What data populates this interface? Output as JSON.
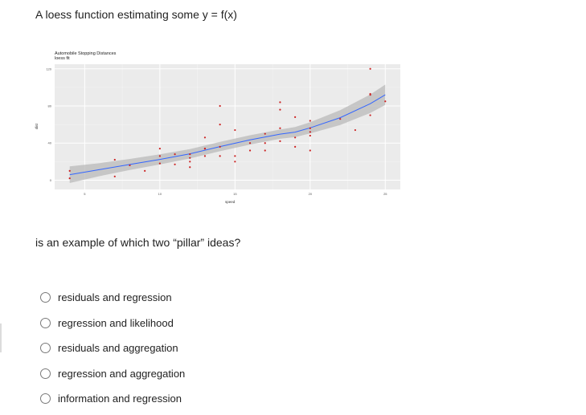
{
  "question": {
    "title": "A loess function estimating some y = f(x)",
    "text": "is an example of which two “pillar” ideas?"
  },
  "options": [
    {
      "label": "residuals and regression",
      "selected": false
    },
    {
      "label": "regression and likelihood",
      "selected": false
    },
    {
      "label": "residuals and aggregation",
      "selected": false
    },
    {
      "label": "regression and aggregation",
      "selected": false
    },
    {
      "label": "information and regression",
      "selected": false
    }
  ],
  "chart_data": {
    "type": "scatter",
    "title": "Automobile Stopping Distances",
    "subtitle": "loess fit",
    "xlabel": "speed",
    "ylabel": "dist",
    "xlim": [
      3,
      26
    ],
    "ylim": [
      -10,
      125
    ],
    "xticks": [
      5,
      10,
      15,
      20,
      25
    ],
    "yticks": [
      0,
      40,
      80,
      120
    ],
    "grid": true,
    "colors": {
      "points": "#cc2222",
      "fit": "#3366ff",
      "band": "#b9b9b9",
      "panel": "#ebebeb"
    },
    "points": [
      [
        4,
        2
      ],
      [
        4,
        10
      ],
      [
        7,
        4
      ],
      [
        7,
        22
      ],
      [
        8,
        16
      ],
      [
        9,
        10
      ],
      [
        10,
        18
      ],
      [
        10,
        26
      ],
      [
        10,
        34
      ],
      [
        11,
        17
      ],
      [
        11,
        28
      ],
      [
        12,
        14
      ],
      [
        12,
        20
      ],
      [
        12,
        24
      ],
      [
        12,
        28
      ],
      [
        13,
        26
      ],
      [
        13,
        34
      ],
      [
        13,
        34
      ],
      [
        13,
        46
      ],
      [
        14,
        26
      ],
      [
        14,
        36
      ],
      [
        14,
        60
      ],
      [
        14,
        80
      ],
      [
        15,
        20
      ],
      [
        15,
        26
      ],
      [
        15,
        54
      ],
      [
        16,
        32
      ],
      [
        16,
        40
      ],
      [
        17,
        32
      ],
      [
        17,
        40
      ],
      [
        17,
        50
      ],
      [
        18,
        42
      ],
      [
        18,
        56
      ],
      [
        18,
        76
      ],
      [
        18,
        84
      ],
      [
        19,
        36
      ],
      [
        19,
        46
      ],
      [
        19,
        68
      ],
      [
        20,
        32
      ],
      [
        20,
        48
      ],
      [
        20,
        52
      ],
      [
        20,
        56
      ],
      [
        20,
        64
      ],
      [
        22,
        66
      ],
      [
        23,
        54
      ],
      [
        24,
        70
      ],
      [
        24,
        92
      ],
      [
        24,
        93
      ],
      [
        24,
        120
      ],
      [
        25,
        85
      ]
    ],
    "fit": [
      [
        4,
        5.9
      ],
      [
        6,
        11.4
      ],
      [
        8,
        16.9
      ],
      [
        10,
        22.4
      ],
      [
        12,
        28.4
      ],
      [
        14,
        36.2
      ],
      [
        16,
        43.4
      ],
      [
        18,
        49.6
      ],
      [
        19,
        51.8
      ],
      [
        20,
        56.4
      ],
      [
        22,
        67.4
      ],
      [
        24,
        82.4
      ],
      [
        25,
        92.0
      ]
    ],
    "band_halfwidth": [
      9,
      7,
      6,
      5.5,
      5,
      5,
      5,
      5,
      5.5,
      6,
      8,
      10,
      11
    ]
  }
}
